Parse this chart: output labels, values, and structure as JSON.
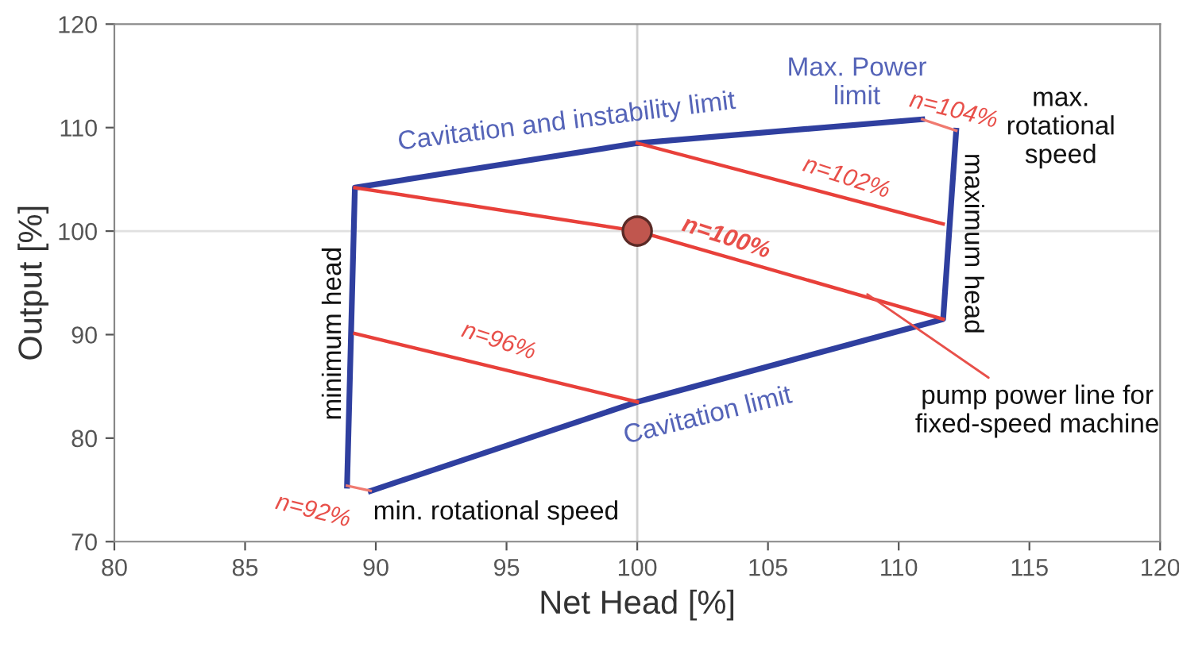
{
  "chart_data": {
    "type": "line",
    "xlabel": "Net Head [%]",
    "ylabel": "Output [%]",
    "xlim": [
      80,
      120
    ],
    "xticks": [
      80,
      85,
      90,
      95,
      100,
      105,
      110,
      115,
      120
    ],
    "ylim": [
      70,
      120
    ],
    "yticks": [
      70,
      80,
      90,
      100,
      110,
      120
    ],
    "grid": false,
    "legend": false,
    "marker": "none",
    "line_style": "solid",
    "ref_lines": [
      {
        "axis": "x",
        "value": 100,
        "color": "#cfcfcf"
      },
      {
        "axis": "y",
        "value": 100,
        "color": "#e0e0e0"
      }
    ],
    "series": [
      {
        "color": "#2f3f9f",
        "x": [
          88.9,
          89.2,
          100,
          110.9
        ],
        "values": [
          75.4,
          104.2,
          108.5,
          110.8
        ]
      },
      {
        "color": "#2f3f9f",
        "x": [
          89.8,
          100,
          111.7,
          112.2
        ],
        "values": [
          74.9,
          83.5,
          91.5,
          109.7
        ]
      },
      {
        "color": "#e8403a",
        "x": [
          89.2,
          100,
          111.7
        ],
        "values": [
          104.2,
          100,
          91.5
        ]
      },
      {
        "color": "#e8403a",
        "x": [
          100,
          111.7
        ],
        "values": [
          108.5,
          100.7
        ]
      },
      {
        "color": "#e8403a",
        "x": [
          89.2,
          100
        ],
        "values": [
          90.1,
          83.5
        ]
      },
      {
        "color": "#f07a70",
        "x": [
          110.9,
          112.2
        ],
        "values": [
          110.8,
          109.7
        ]
      },
      {
        "color": "#f07a70",
        "x": [
          88.9,
          89.8
        ],
        "values": [
          75.4,
          74.9
        ]
      },
      {
        "type": "scatter",
        "marker": "circle",
        "color": "#c0564e",
        "x": [
          100
        ],
        "values": [
          100
        ]
      }
    ],
    "annotations": [
      "Cavitation and instability limit",
      "Max. Power\nlimit",
      "max.\nrotational\nspeed",
      "n=104%",
      "n=102%",
      "n=100%",
      "n=96%",
      "Cavitation limit",
      "n=92%",
      "min. rotational speed",
      "minimum head",
      "maximum head",
      {
        "text": "pump power line for\nfixed-speed machine",
        "x": 108.8,
        "y": 93.9
      }
    ]
  }
}
